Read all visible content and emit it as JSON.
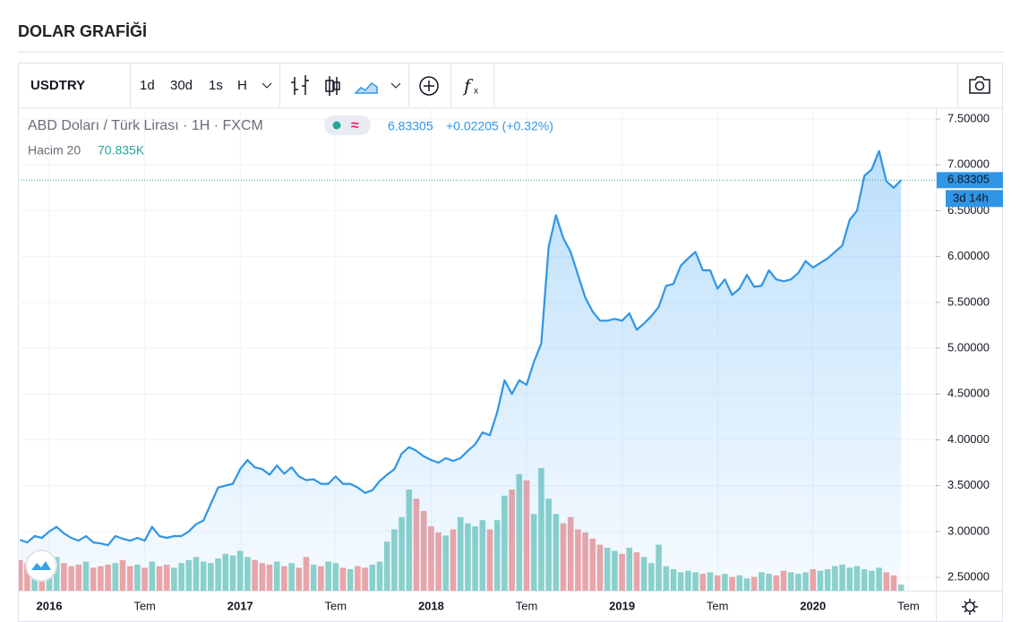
{
  "header": {
    "title": "DOLAR GRAFİĞİ"
  },
  "toolbar": {
    "symbol": "USDTRY",
    "intervals": [
      "1d",
      "30d",
      "1s",
      "H"
    ],
    "active_interval": 3
  },
  "chart_data": {
    "type": "line",
    "title": "ABD Doları / Türk Lirası · 1H · FXCM",
    "change": "+0.02205 (+0.32%)",
    "volume_ma_name": "Hacim 20",
    "volume_ma": "70.835K",
    "countdown": "3d 14h",
    "up_color": "#8fd3c9",
    "down_color": "#f2a5a5",
    "categories": [
      null,
      null,
      null,
      null,
      "2016",
      null,
      null,
      null,
      null,
      null,
      null,
      null,
      null,
      null,
      null,
      null,
      null,
      "Tem",
      null,
      null,
      null,
      null,
      null,
      null,
      null,
      null,
      null,
      null,
      null,
      null,
      "2017",
      null,
      null,
      null,
      null,
      null,
      null,
      null,
      null,
      null,
      null,
      null,
      null,
      "Tem",
      null,
      null,
      null,
      null,
      null,
      null,
      null,
      null,
      null,
      null,
      null,
      null,
      "2018",
      null,
      null,
      null,
      null,
      null,
      null,
      null,
      null,
      null,
      null,
      null,
      null,
      "Tem",
      null,
      null,
      null,
      null,
      null,
      null,
      null,
      null,
      null,
      null,
      null,
      null,
      "2019",
      null,
      null,
      null,
      null,
      null,
      null,
      null,
      null,
      null,
      null,
      null,
      null,
      "Tem",
      null,
      null,
      null,
      null,
      null,
      null,
      null,
      null,
      null,
      null,
      null,
      null,
      "2020",
      null,
      null,
      null,
      null,
      null,
      null,
      null,
      null,
      null,
      null,
      null,
      null,
      "Tem"
    ],
    "series": [
      {
        "name": "ABD Doları / Türk Lirası · 1H · FXCM",
        "color": "#2f95e6",
        "values": [
          2.91,
          2.88,
          2.95,
          2.93,
          3.0,
          3.05,
          2.98,
          2.93,
          2.9,
          2.95,
          2.88,
          2.87,
          2.85,
          2.95,
          2.92,
          2.9,
          2.93,
          2.9,
          3.05,
          2.95,
          2.93,
          2.95,
          2.95,
          3.0,
          3.08,
          3.12,
          3.3,
          3.48,
          3.5,
          3.52,
          3.68,
          3.78,
          3.7,
          3.68,
          3.62,
          3.72,
          3.63,
          3.7,
          3.6,
          3.56,
          3.57,
          3.52,
          3.52,
          3.6,
          3.52,
          3.52,
          3.48,
          3.42,
          3.45,
          3.55,
          3.62,
          3.68,
          3.85,
          3.92,
          3.88,
          3.82,
          3.78,
          3.75,
          3.8,
          3.77,
          3.8,
          3.88,
          3.95,
          4.08,
          4.05,
          4.3,
          4.65,
          4.5,
          4.65,
          4.6,
          4.85,
          5.05,
          6.1,
          6.45,
          6.2,
          6.05,
          5.8,
          5.55,
          5.4,
          5.3,
          5.3,
          5.32,
          5.3,
          5.38,
          5.2,
          5.27,
          5.35,
          5.45,
          5.68,
          5.7,
          5.9,
          5.98,
          6.05,
          5.85,
          5.85,
          5.65,
          5.75,
          5.58,
          5.65,
          5.8,
          5.67,
          5.68,
          5.85,
          5.75,
          5.73,
          5.75,
          5.82,
          5.95,
          5.88,
          5.93,
          5.98,
          6.05,
          6.12,
          6.4,
          6.5,
          6.88,
          6.95,
          7.15,
          6.82,
          6.75,
          6.83305,
          null
        ]
      },
      {
        "name": "Hacim 20",
        "type": "bar",
        "values": [
          100,
          90,
          105,
          85,
          95,
          110,
          90,
          80,
          85,
          95,
          75,
          80,
          85,
          90,
          100,
          80,
          85,
          75,
          95,
          80,
          85,
          75,
          90,
          100,
          110,
          95,
          90,
          105,
          120,
          115,
          130,
          110,
          100,
          90,
          85,
          95,
          80,
          90,
          75,
          110,
          85,
          80,
          95,
          90,
          75,
          70,
          80,
          75,
          85,
          95,
          160,
          200,
          240,
          330,
          300,
          260,
          210,
          190,
          180,
          200,
          240,
          220,
          210,
          230,
          200,
          230,
          310,
          330,
          380,
          360,
          250,
          400,
          300,
          250,
          220,
          240,
          200,
          190,
          170,
          150,
          140,
          130,
          120,
          140,
          125,
          110,
          90,
          150,
          80,
          70,
          60,
          65,
          60,
          55,
          60,
          50,
          55,
          45,
          50,
          40,
          45,
          60,
          55,
          50,
          65,
          60,
          55,
          60,
          70,
          65,
          70,
          80,
          85,
          75,
          80,
          70,
          65,
          75,
          60,
          50,
          20,
          null
        ]
      }
    ],
    "ylim": [
      2.354,
      7.627
    ],
    "yticks": [
      {
        "value": 2.5,
        "label": "2.50000"
      },
      {
        "value": 3,
        "label": "3.00000"
      },
      {
        "value": 3.5,
        "label": "3.50000"
      },
      {
        "value": 4,
        "label": "4.00000"
      },
      {
        "value": 4.5,
        "label": "4.50000"
      },
      {
        "value": 5,
        "label": "5.00000"
      },
      {
        "value": 5.5,
        "label": "5.50000"
      },
      {
        "value": 6,
        "label": "6.00000"
      },
      {
        "value": 6.5,
        "label": "6.50000"
      },
      {
        "value": 7,
        "label": "7.00000"
      },
      {
        "value": 7.5,
        "label": "7.50000"
      }
    ],
    "grid": true
  }
}
